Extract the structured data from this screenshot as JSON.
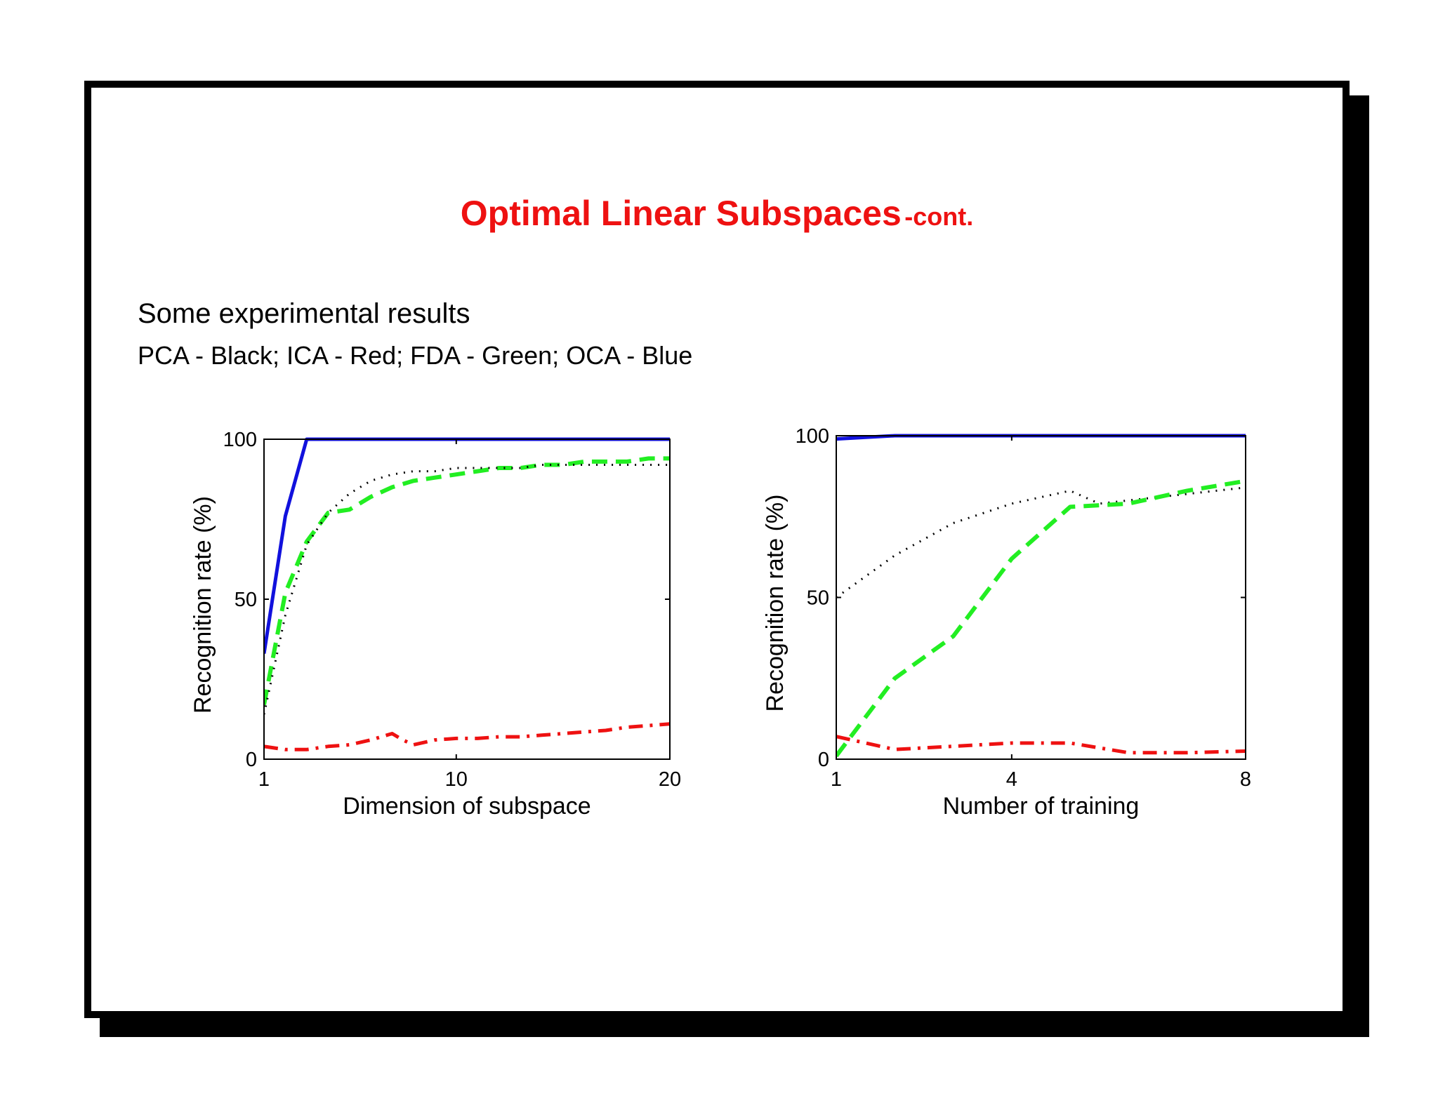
{
  "slide": {
    "title": "Optimal Linear Subspaces",
    "title_suffix": "-cont.",
    "subtitle": "Some experimental results",
    "legend_text": "PCA - Black; ICA - Red; FDA - Green; OCA - Blue"
  },
  "colors": {
    "title": "#ee1111",
    "pca": "#000000",
    "ica": "#ee1111",
    "fda": "#22ee22",
    "oca": "#1111dd"
  },
  "chart_data": [
    {
      "type": "line",
      "xlabel": "Dimension of subspace",
      "ylabel": "Recognition rate (%)",
      "xlim": [
        1,
        20
      ],
      "ylim": [
        0,
        100
      ],
      "xticks": [
        1,
        10,
        20
      ],
      "yticks": [
        0,
        50,
        100
      ],
      "grid": false,
      "series": [
        {
          "key": "oca",
          "style": "solid",
          "x": [
            1,
            2,
            3,
            4,
            5,
            6,
            7,
            8,
            9,
            10,
            11,
            12,
            13,
            14,
            15,
            16,
            17,
            18,
            19,
            20
          ],
          "y": [
            33,
            76,
            100,
            100,
            100,
            100,
            100,
            100,
            100,
            100,
            100,
            100,
            100,
            100,
            100,
            100,
            100,
            100,
            100,
            100
          ]
        },
        {
          "key": "fda",
          "style": "dashed",
          "x": [
            1,
            2,
            3,
            4,
            5,
            6,
            7,
            8,
            9,
            10,
            11,
            12,
            13,
            14,
            15,
            16,
            17,
            18,
            19,
            20
          ],
          "y": [
            17,
            52,
            68,
            77,
            78,
            82,
            85,
            87,
            88,
            89,
            90,
            91,
            91,
            92,
            92,
            93,
            93,
            93,
            94,
            94
          ]
        },
        {
          "key": "pca",
          "style": "dotted",
          "x": [
            1,
            2,
            3,
            4,
            5,
            6,
            7,
            8,
            9,
            10,
            11,
            12,
            13,
            14,
            15,
            16,
            17,
            18,
            19,
            20
          ],
          "y": [
            14,
            45,
            67,
            77,
            83,
            87,
            89,
            90,
            90,
            91,
            91,
            91,
            91,
            92,
            92,
            92,
            92,
            92,
            92,
            92
          ]
        },
        {
          "key": "ica",
          "style": "dashdot",
          "x": [
            1,
            2,
            3,
            4,
            5,
            6,
            7,
            7.5,
            8,
            9,
            10,
            11,
            12,
            13,
            14,
            15,
            16,
            17,
            18,
            19,
            20
          ],
          "y": [
            4,
            3,
            3,
            4,
            4.5,
            6,
            8,
            6,
            4.5,
            6,
            6.5,
            6.5,
            7,
            7,
            7.5,
            8,
            8.5,
            9,
            10,
            10.5,
            11
          ]
        }
      ]
    },
    {
      "type": "line",
      "xlabel": "Number of training",
      "ylabel": "Recognition rate (%)",
      "xlim": [
        1,
        8
      ],
      "ylim": [
        0,
        100
      ],
      "xticks": [
        1,
        4,
        8
      ],
      "yticks": [
        0,
        50,
        100
      ],
      "grid": false,
      "series": [
        {
          "key": "oca",
          "style": "solid",
          "x": [
            1,
            2,
            3,
            4,
            5,
            6,
            7,
            8
          ],
          "y": [
            99,
            100,
            100,
            100,
            100,
            100,
            100,
            100
          ]
        },
        {
          "key": "pca",
          "style": "dotted",
          "x": [
            1,
            2,
            3,
            4,
            5,
            5.5,
            6,
            7,
            8
          ],
          "y": [
            50,
            63,
            73,
            79,
            83,
            79,
            80,
            82,
            84
          ]
        },
        {
          "key": "fda",
          "style": "dashed",
          "x": [
            1,
            2,
            3,
            4,
            5,
            6,
            7,
            8
          ],
          "y": [
            1,
            25,
            38,
            62,
            78,
            79,
            83,
            86
          ]
        },
        {
          "key": "ica",
          "style": "dashdot",
          "x": [
            1,
            2,
            3,
            4,
            5,
            6,
            7,
            8
          ],
          "y": [
            7,
            3,
            4,
            5,
            5,
            2,
            2,
            2.5
          ]
        }
      ]
    }
  ]
}
